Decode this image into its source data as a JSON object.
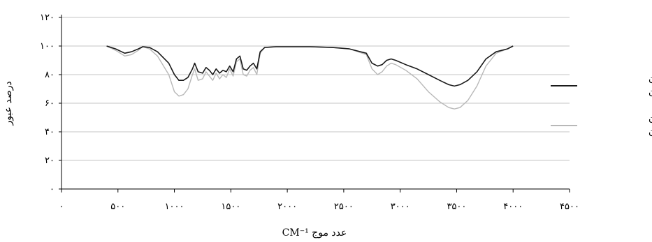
{
  "chart_data": {
    "type": "line",
    "title": "",
    "xlabel": "عدد موج CM⁻¹",
    "ylabel": "درصد عبور",
    "xlim": [
      0,
      4500
    ],
    "ylim": [
      0,
      120
    ],
    "x_ticks": [
      {
        "value": 0,
        "label": "۰"
      },
      {
        "value": 500,
        "label": "۵۰۰"
      },
      {
        "value": 1000,
        "label": "۱۰۰۰"
      },
      {
        "value": 1500,
        "label": "۱۵۰۰"
      },
      {
        "value": 2000,
        "label": "۲۰۰۰"
      },
      {
        "value": 2500,
        "label": "۲۵۰۰"
      },
      {
        "value": 3000,
        "label": "۳۰۰۰"
      },
      {
        "value": 3500,
        "label": "۳۵۰۰"
      },
      {
        "value": 4000,
        "label": "۴۰۰۰"
      },
      {
        "value": 4500,
        "label": "۴۵۰۰"
      }
    ],
    "y_ticks": [
      {
        "value": 0,
        "label": "۰"
      },
      {
        "value": 20,
        "label": "۲۰"
      },
      {
        "value": 40,
        "label": "۴۰"
      },
      {
        "value": 60,
        "label": "۶۰"
      },
      {
        "value": 80,
        "label": "۸۰"
      },
      {
        "value": 100,
        "label": "۱۰۰"
      },
      {
        "value": 120,
        "label": "۱۲۰"
      }
    ],
    "grid": "horizontal",
    "legend_position": "right",
    "series": [
      {
        "name_lines": [
          "پراکسید هیدروژن",
          "بعد از خشک شدن"
        ],
        "color": "#1a1a1a",
        "points": [
          [
            400,
            100
          ],
          [
            480,
            98
          ],
          [
            560,
            95
          ],
          [
            620,
            96
          ],
          [
            680,
            98
          ],
          [
            720,
            99.5
          ],
          [
            780,
            99
          ],
          [
            850,
            96
          ],
          [
            950,
            88
          ],
          [
            1000,
            80
          ],
          [
            1040,
            76
          ],
          [
            1080,
            76
          ],
          [
            1120,
            78
          ],
          [
            1160,
            84
          ],
          [
            1180,
            88
          ],
          [
            1210,
            82
          ],
          [
            1250,
            81
          ],
          [
            1280,
            85
          ],
          [
            1310,
            83
          ],
          [
            1340,
            80
          ],
          [
            1370,
            84
          ],
          [
            1400,
            81
          ],
          [
            1430,
            83
          ],
          [
            1460,
            82
          ],
          [
            1490,
            86
          ],
          [
            1520,
            82
          ],
          [
            1550,
            91
          ],
          [
            1580,
            93
          ],
          [
            1610,
            84
          ],
          [
            1640,
            83
          ],
          [
            1670,
            86
          ],
          [
            1700,
            88
          ],
          [
            1730,
            84
          ],
          [
            1760,
            96
          ],
          [
            1800,
            99
          ],
          [
            1900,
            99.5
          ],
          [
            2000,
            99.5
          ],
          [
            2200,
            99.5
          ],
          [
            2400,
            99
          ],
          [
            2550,
            98
          ],
          [
            2700,
            95
          ],
          [
            2750,
            88
          ],
          [
            2800,
            86
          ],
          [
            2840,
            87
          ],
          [
            2880,
            90
          ],
          [
            2920,
            91
          ],
          [
            2960,
            90
          ],
          [
            3050,
            87
          ],
          [
            3150,
            84
          ],
          [
            3250,
            80
          ],
          [
            3350,
            76
          ],
          [
            3430,
            73
          ],
          [
            3480,
            72
          ],
          [
            3530,
            73
          ],
          [
            3600,
            76
          ],
          [
            3680,
            82
          ],
          [
            3760,
            91
          ],
          [
            3850,
            96
          ],
          [
            3950,
            98
          ],
          [
            4000,
            100
          ]
        ]
      },
      {
        "name_lines": [
          "پراکسید هیدروژن",
          "قبل از خشک شدن"
        ],
        "color": "#b8b8b8",
        "points": [
          [
            400,
            100
          ],
          [
            480,
            97
          ],
          [
            560,
            93
          ],
          [
            620,
            94
          ],
          [
            680,
            97
          ],
          [
            720,
            99.5
          ],
          [
            780,
            98
          ],
          [
            850,
            93
          ],
          [
            950,
            80
          ],
          [
            1000,
            68
          ],
          [
            1040,
            65
          ],
          [
            1080,
            66
          ],
          [
            1120,
            70
          ],
          [
            1160,
            80
          ],
          [
            1180,
            84
          ],
          [
            1210,
            76
          ],
          [
            1250,
            77
          ],
          [
            1280,
            82
          ],
          [
            1310,
            79
          ],
          [
            1340,
            76
          ],
          [
            1370,
            81
          ],
          [
            1400,
            77
          ],
          [
            1430,
            80
          ],
          [
            1460,
            78
          ],
          [
            1490,
            84
          ],
          [
            1520,
            79
          ],
          [
            1550,
            89
          ],
          [
            1580,
            91
          ],
          [
            1610,
            80
          ],
          [
            1640,
            79
          ],
          [
            1670,
            83
          ],
          [
            1700,
            85
          ],
          [
            1730,
            80
          ],
          [
            1760,
            95
          ],
          [
            1800,
            99
          ],
          [
            1900,
            99.5
          ],
          [
            2000,
            99.5
          ],
          [
            2200,
            99.5
          ],
          [
            2400,
            99
          ],
          [
            2550,
            98
          ],
          [
            2700,
            94
          ],
          [
            2750,
            84
          ],
          [
            2800,
            80
          ],
          [
            2840,
            82
          ],
          [
            2880,
            86
          ],
          [
            2920,
            88
          ],
          [
            2960,
            87
          ],
          [
            3050,
            83
          ],
          [
            3150,
            77
          ],
          [
            3250,
            68
          ],
          [
            3350,
            61
          ],
          [
            3430,
            57
          ],
          [
            3480,
            56
          ],
          [
            3530,
            57
          ],
          [
            3600,
            62
          ],
          [
            3680,
            72
          ],
          [
            3760,
            86
          ],
          [
            3850,
            95
          ],
          [
            3950,
            98
          ],
          [
            4000,
            100
          ]
        ]
      }
    ]
  }
}
